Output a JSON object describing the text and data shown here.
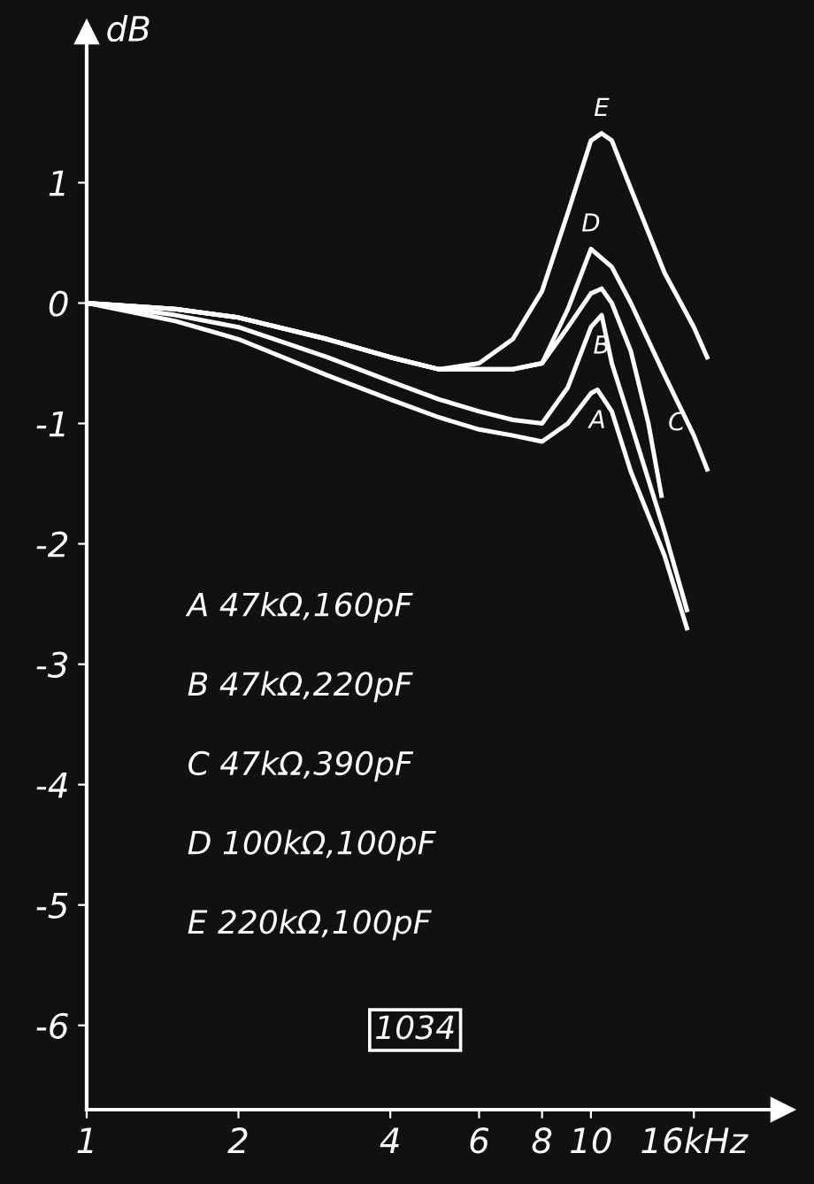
{
  "chart_data": {
    "type": "line",
    "ylabel": "dB",
    "log": "x",
    "xlim": [
      1,
      24
    ],
    "ylim": [
      -6.7,
      2.25
    ],
    "xticks": [
      1,
      2,
      4,
      6,
      8,
      10,
      {
        "value": 16,
        "label": "16kHz"
      }
    ],
    "yticks": [
      1,
      0,
      -1,
      -2,
      -3,
      -4,
      -5,
      -6
    ],
    "grid": false,
    "marker": "none",
    "line_style": "solid",
    "series": [
      {
        "color": "#ffffff",
        "x": [
          1,
          1.5,
          2,
          3,
          4,
          5,
          6,
          7,
          8,
          9,
          10,
          10.3,
          11,
          12,
          14,
          15.5
        ],
        "values": [
          0,
          -0.15,
          -0.3,
          -0.6,
          -0.8,
          -0.95,
          -1.05,
          -1.1,
          -1.15,
          -1.0,
          -0.75,
          -0.72,
          -0.9,
          -1.4,
          -2.1,
          -2.7
        ]
      },
      {
        "color": "#ffffff",
        "x": [
          1,
          1.5,
          2,
          3,
          4,
          5,
          6,
          7,
          8,
          9,
          10,
          10.5,
          11,
          12,
          14,
          15.5
        ],
        "values": [
          0,
          -0.1,
          -0.2,
          -0.45,
          -0.65,
          -0.8,
          -0.9,
          -0.97,
          -1.0,
          -0.7,
          -0.2,
          -0.1,
          -0.5,
          -1.0,
          -1.9,
          -2.55
        ]
      },
      {
        "color": "#ffffff",
        "x": [
          1,
          1.5,
          2,
          3,
          4,
          5,
          6,
          7,
          8,
          9,
          10,
          10.5,
          11,
          12,
          13,
          13.8
        ],
        "values": [
          0,
          -0.05,
          -0.12,
          -0.3,
          -0.45,
          -0.55,
          -0.55,
          -0.55,
          -0.5,
          -0.2,
          0.08,
          0.12,
          0.0,
          -0.4,
          -1.0,
          -1.6
        ]
      },
      {
        "color": "#ffffff",
        "x": [
          1,
          1.5,
          2,
          3,
          4,
          5,
          6,
          7,
          8,
          9,
          10,
          11,
          12,
          14,
          16,
          17
        ],
        "values": [
          0,
          -0.05,
          -0.12,
          -0.3,
          -0.45,
          -0.55,
          -0.55,
          -0.55,
          -0.5,
          -0.05,
          0.45,
          0.3,
          0.0,
          -0.6,
          -1.1,
          -1.38
        ]
      },
      {
        "color": "#ffffff",
        "x": [
          1,
          1.5,
          2,
          3,
          4,
          5,
          6,
          7,
          8,
          9,
          10,
          10.5,
          11,
          12,
          14,
          16,
          17
        ],
        "values": [
          0,
          -0.05,
          -0.12,
          -0.3,
          -0.45,
          -0.55,
          -0.5,
          -0.3,
          0.1,
          0.75,
          1.35,
          1.41,
          1.35,
          0.95,
          0.25,
          -0.2,
          -0.45
        ]
      }
    ],
    "annotations": [
      {
        "text": "E",
        "x": 10.5,
        "y": 1.41
      },
      {
        "text": "D",
        "x": 10,
        "y": 0.45
      },
      {
        "text": "C",
        "x": 13,
        "y": -1.0
      },
      {
        "text": "B",
        "x": 10.5,
        "y": -0.1
      },
      {
        "text": "A",
        "x": 10.3,
        "y": -0.72
      },
      "A 47kΩ,160pF",
      "B 47kΩ,220pF",
      "C 47kΩ,390pF",
      "D 100kΩ,100pF",
      "E 220kΩ,100pF",
      "1034"
    ]
  }
}
